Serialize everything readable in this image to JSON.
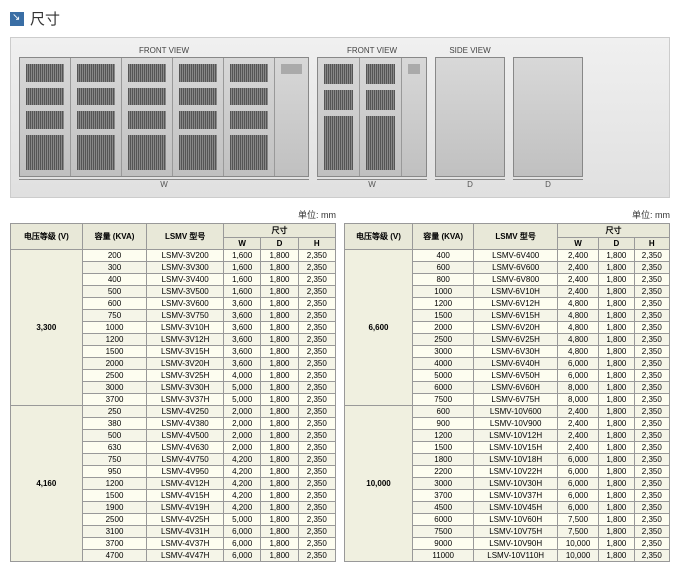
{
  "title": "尺寸",
  "views": {
    "front1": "FRONT VIEW",
    "front2": "FRONT VIEW",
    "side": "SIDE VIEW",
    "dim_w": "W",
    "dim_d": "D"
  },
  "unit_label": "单位: mm",
  "headers": {
    "voltage": "电压等级 (V)",
    "capacity": "容量 (KVA)",
    "model": "LSMV 型号",
    "dims": "尺寸",
    "w": "W",
    "d": "D",
    "h": "H"
  },
  "table_left": [
    {
      "vg": "3,300",
      "rows": [
        {
          "kva": "200",
          "m": "LSMV-3V200",
          "w": "1,600",
          "d": "1,800",
          "h": "2,350"
        },
        {
          "kva": "300",
          "m": "LSMV-3V300",
          "w": "1,600",
          "d": "1,800",
          "h": "2,350"
        },
        {
          "kva": "400",
          "m": "LSMV-3V400",
          "w": "1,600",
          "d": "1,800",
          "h": "2,350"
        },
        {
          "kva": "500",
          "m": "LSMV-3V500",
          "w": "1,600",
          "d": "1,800",
          "h": "2,350"
        },
        {
          "kva": "600",
          "m": "LSMV-3V600",
          "w": "3,600",
          "d": "1,800",
          "h": "2,350"
        },
        {
          "kva": "750",
          "m": "LSMV-3V750",
          "w": "3,600",
          "d": "1,800",
          "h": "2,350"
        },
        {
          "kva": "1000",
          "m": "LSMV-3V10H",
          "w": "3,600",
          "d": "1,800",
          "h": "2,350"
        },
        {
          "kva": "1200",
          "m": "LSMV-3V12H",
          "w": "3,600",
          "d": "1,800",
          "h": "2,350"
        },
        {
          "kva": "1500",
          "m": "LSMV-3V15H",
          "w": "3,600",
          "d": "1,800",
          "h": "2,350"
        },
        {
          "kva": "2000",
          "m": "LSMV-3V20H",
          "w": "3,600",
          "d": "1,800",
          "h": "2,350"
        },
        {
          "kva": "2500",
          "m": "LSMV-3V25H",
          "w": "4,000",
          "d": "1,800",
          "h": "2,350"
        },
        {
          "kva": "3000",
          "m": "LSMV-3V30H",
          "w": "5,000",
          "d": "1,800",
          "h": "2,350"
        },
        {
          "kva": "3700",
          "m": "LSMV-3V37H",
          "w": "5,000",
          "d": "1,800",
          "h": "2,350"
        }
      ]
    },
    {
      "vg": "4,160",
      "rows": [
        {
          "kva": "250",
          "m": "LSMV-4V250",
          "w": "2,000",
          "d": "1,800",
          "h": "2,350"
        },
        {
          "kva": "380",
          "m": "LSMV-4V380",
          "w": "2,000",
          "d": "1,800",
          "h": "2,350"
        },
        {
          "kva": "500",
          "m": "LSMV-4V500",
          "w": "2,000",
          "d": "1,800",
          "h": "2,350"
        },
        {
          "kva": "630",
          "m": "LSMV-4V630",
          "w": "2,000",
          "d": "1,800",
          "h": "2,350"
        },
        {
          "kva": "750",
          "m": "LSMV-4V750",
          "w": "4,200",
          "d": "1,800",
          "h": "2,350"
        },
        {
          "kva": "950",
          "m": "LSMV-4V950",
          "w": "4,200",
          "d": "1,800",
          "h": "2,350"
        },
        {
          "kva": "1200",
          "m": "LSMV-4V12H",
          "w": "4,200",
          "d": "1,800",
          "h": "2,350"
        },
        {
          "kva": "1500",
          "m": "LSMV-4V15H",
          "w": "4,200",
          "d": "1,800",
          "h": "2,350"
        },
        {
          "kva": "1900",
          "m": "LSMV-4V19H",
          "w": "4,200",
          "d": "1,800",
          "h": "2,350"
        },
        {
          "kva": "2500",
          "m": "LSMV-4V25H",
          "w": "5,000",
          "d": "1,800",
          "h": "2,350"
        },
        {
          "kva": "3100",
          "m": "LSMV-4V31H",
          "w": "6,000",
          "d": "1,800",
          "h": "2,350"
        },
        {
          "kva": "3700",
          "m": "LSMV-4V37H",
          "w": "6,000",
          "d": "1,800",
          "h": "2,350"
        },
        {
          "kva": "4700",
          "m": "LSMV-4V47H",
          "w": "6,000",
          "d": "1,800",
          "h": "2,350"
        }
      ]
    }
  ],
  "table_right": [
    {
      "vg": "6,600",
      "rows": [
        {
          "kva": "400",
          "m": "LSMV-6V400",
          "w": "2,400",
          "d": "1,800",
          "h": "2,350"
        },
        {
          "kva": "600",
          "m": "LSMV-6V600",
          "w": "2,400",
          "d": "1,800",
          "h": "2,350"
        },
        {
          "kva": "800",
          "m": "LSMV-6V800",
          "w": "2,400",
          "d": "1,800",
          "h": "2,350"
        },
        {
          "kva": "1000",
          "m": "LSMV-6V10H",
          "w": "2,400",
          "d": "1,800",
          "h": "2,350"
        },
        {
          "kva": "1200",
          "m": "LSMV-6V12H",
          "w": "4,800",
          "d": "1,800",
          "h": "2,350"
        },
        {
          "kva": "1500",
          "m": "LSMV-6V15H",
          "w": "4,800",
          "d": "1,800",
          "h": "2,350"
        },
        {
          "kva": "2000",
          "m": "LSMV-6V20H",
          "w": "4,800",
          "d": "1,800",
          "h": "2,350"
        },
        {
          "kva": "2500",
          "m": "LSMV-6V25H",
          "w": "4,800",
          "d": "1,800",
          "h": "2,350"
        },
        {
          "kva": "3000",
          "m": "LSMV-6V30H",
          "w": "4,800",
          "d": "1,800",
          "h": "2,350"
        },
        {
          "kva": "4000",
          "m": "LSMV-6V40H",
          "w": "6,000",
          "d": "1,800",
          "h": "2,350"
        },
        {
          "kva": "5000",
          "m": "LSMV-6V50H",
          "w": "6,000",
          "d": "1,800",
          "h": "2,350"
        },
        {
          "kva": "6000",
          "m": "LSMV-6V60H",
          "w": "8,000",
          "d": "1,800",
          "h": "2,350"
        },
        {
          "kva": "7500",
          "m": "LSMV-6V75H",
          "w": "8,000",
          "d": "1,800",
          "h": "2,350"
        }
      ]
    },
    {
      "vg": "10,000",
      "rows": [
        {
          "kva": "600",
          "m": "LSMV-10V600",
          "w": "2,400",
          "d": "1,800",
          "h": "2,350"
        },
        {
          "kva": "900",
          "m": "LSMV-10V900",
          "w": "2,400",
          "d": "1,800",
          "h": "2,350"
        },
        {
          "kva": "1200",
          "m": "LSMV-10V12H",
          "w": "2,400",
          "d": "1,800",
          "h": "2,350"
        },
        {
          "kva": "1500",
          "m": "LSMV-10V15H",
          "w": "2,400",
          "d": "1,800",
          "h": "2,350"
        },
        {
          "kva": "1800",
          "m": "LSMV-10V18H",
          "w": "6,000",
          "d": "1,800",
          "h": "2,350"
        },
        {
          "kva": "2200",
          "m": "LSMV-10V22H",
          "w": "6,000",
          "d": "1,800",
          "h": "2,350"
        },
        {
          "kva": "3000",
          "m": "LSMV-10V30H",
          "w": "6,000",
          "d": "1,800",
          "h": "2,350"
        },
        {
          "kva": "3700",
          "m": "LSMV-10V37H",
          "w": "6,000",
          "d": "1,800",
          "h": "2,350"
        },
        {
          "kva": "4500",
          "m": "LSMV-10V45H",
          "w": "6,000",
          "d": "1,800",
          "h": "2,350"
        },
        {
          "kva": "6000",
          "m": "LSMV-10V60H",
          "w": "7,500",
          "d": "1,800",
          "h": "2,350"
        },
        {
          "kva": "7500",
          "m": "LSMV-10V75H",
          "w": "7,500",
          "d": "1,800",
          "h": "2,350"
        },
        {
          "kva": "9000",
          "m": "LSMV-10V90H",
          "w": "10,000",
          "d": "1,800",
          "h": "2,350"
        },
        {
          "kva": "11000",
          "m": "LSMV-10V110H",
          "w": "10,000",
          "d": "1,800",
          "h": "2,350"
        }
      ]
    }
  ]
}
